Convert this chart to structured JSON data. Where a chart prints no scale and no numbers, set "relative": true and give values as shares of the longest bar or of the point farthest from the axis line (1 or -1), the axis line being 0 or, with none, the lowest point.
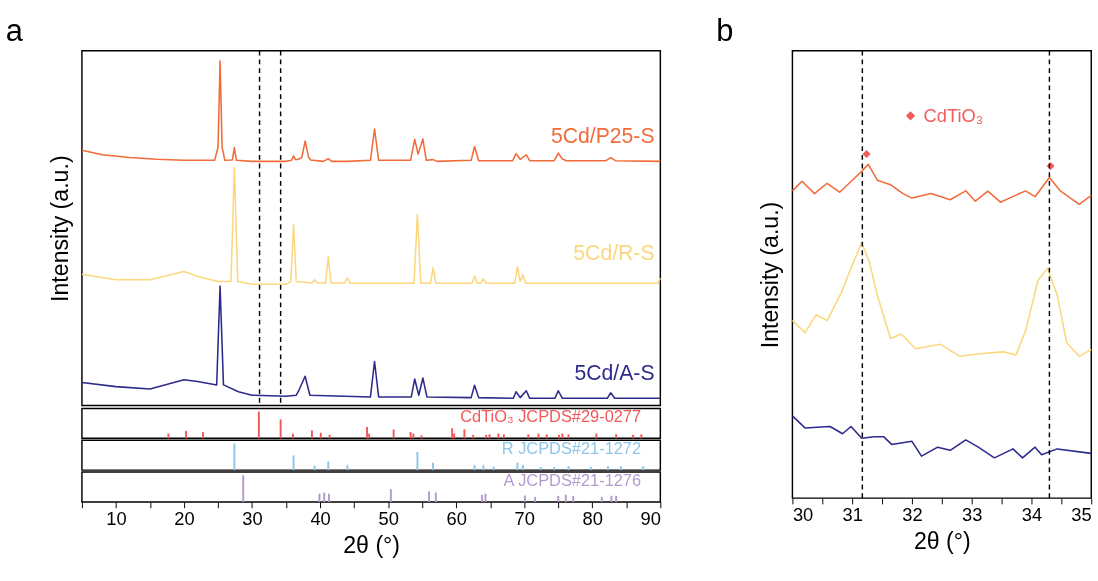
{
  "chart_data": [
    {
      "type": "line",
      "title": "a",
      "ylabel": "Intensity (a.u.)",
      "relative": true,
      "xlim": [
        5,
        90
      ],
      "tick_labels": false,
      "marker": "none",
      "line_style": "solid",
      "ref_lines": [
        {
          "axis": "x",
          "value": 31.1,
          "color": "#000000",
          "line_style": "dashed"
        },
        {
          "axis": "x",
          "value": 34.2,
          "color": "#000000",
          "line_style": "dashed"
        }
      ],
      "series": [
        {
          "name": "5Cd/P25-S",
          "color": "#f26b3a",
          "x": [
            5,
            8,
            12,
            16,
            20,
            24.5,
            25.0,
            25.3,
            25.6,
            26.0,
            27.1,
            27.4,
            27.7,
            30,
            35,
            35.8,
            36.1,
            36.4,
            36.9,
            37.3,
            37.8,
            38.3,
            38.6,
            40.5,
            41.2,
            41.7,
            44,
            47.4,
            48.0,
            48.6,
            53.3,
            53.9,
            54.4,
            55.1,
            55.6,
            56.6,
            57.2,
            62.2,
            62.7,
            63.3,
            68.3,
            68.8,
            69.4,
            70.3,
            70.8,
            74.4,
            75.0,
            75.6,
            76.2,
            82.0,
            82.7,
            83.4,
            90
          ],
          "values": [
            0.741,
            0.728,
            0.72,
            0.715,
            0.712,
            0.712,
            0.75,
            1.0,
            0.75,
            0.712,
            0.713,
            0.749,
            0.712,
            0.709,
            0.709,
            0.712,
            0.725,
            0.714,
            0.716,
            0.72,
            0.768,
            0.722,
            0.713,
            0.709,
            0.717,
            0.709,
            0.709,
            0.712,
            0.803,
            0.712,
            0.712,
            0.773,
            0.73,
            0.774,
            0.712,
            0.714,
            0.709,
            0.712,
            0.752,
            0.711,
            0.711,
            0.731,
            0.715,
            0.728,
            0.711,
            0.711,
            0.733,
            0.716,
            0.711,
            0.711,
            0.72,
            0.711,
            0.709
          ]
        },
        {
          "name": "5Cd/R-S",
          "color": "#fbd77d",
          "x": [
            5,
            10,
            15,
            20,
            22,
            25,
            26.9,
            27.4,
            27.9,
            30,
            35,
            35.7,
            36.1,
            36.5,
            38.8,
            39.2,
            39.6,
            40.8,
            41.2,
            41.6,
            43.6,
            44.0,
            44.4,
            53.8,
            54.3,
            54.8,
            56.2,
            56.6,
            57.0,
            62.3,
            62.7,
            63.1,
            63.6,
            64.0,
            64.4,
            68.6,
            69.0,
            69.4,
            69.8,
            70.2,
            80,
            89.6,
            90
          ],
          "values": [
            0.381,
            0.365,
            0.365,
            0.389,
            0.375,
            0.36,
            0.36,
            0.691,
            0.36,
            0.352,
            0.352,
            0.36,
            0.525,
            0.36,
            0.356,
            0.365,
            0.356,
            0.356,
            0.432,
            0.356,
            0.356,
            0.371,
            0.355,
            0.355,
            0.555,
            0.355,
            0.355,
            0.4,
            0.355,
            0.355,
            0.376,
            0.355,
            0.355,
            0.368,
            0.355,
            0.355,
            0.403,
            0.36,
            0.379,
            0.355,
            0.355,
            0.355,
            0.37
          ]
        },
        {
          "name": "5Cd/A-S",
          "color": "#2e2a8c",
          "x": [
            5,
            10,
            15,
            20,
            22,
            24.8,
            25.3,
            25.8,
            28,
            30,
            35,
            36.5,
            36.9,
            37.8,
            38.5,
            47.4,
            48.0,
            48.6,
            53.4,
            53.9,
            54.5,
            55.1,
            55.7,
            62.2,
            62.7,
            63.3,
            68.4,
            68.8,
            69.4,
            70.3,
            70.8,
            74.5,
            75.0,
            75.6,
            82.2,
            82.7,
            83.3,
            90
          ],
          "values": [
            0.067,
            0.055,
            0.048,
            0.075,
            0.07,
            0.06,
            0.347,
            0.06,
            0.04,
            0.03,
            0.027,
            0.03,
            0.045,
            0.085,
            0.03,
            0.025,
            0.128,
            0.025,
            0.025,
            0.077,
            0.03,
            0.08,
            0.025,
            0.023,
            0.059,
            0.023,
            0.021,
            0.04,
            0.023,
            0.043,
            0.021,
            0.021,
            0.043,
            0.021,
            0.021,
            0.037,
            0.021,
            0.021
          ]
        }
      ]
    },
    {
      "type": "bar",
      "relative": true,
      "xlim": [
        5,
        90
      ],
      "tick_labels": false,
      "series": [
        {
          "name": "CdTiO₃ JCPDS#29-0277",
          "color": "#f25a5a",
          "x": [
            17.7,
            20.3,
            22.8,
            31.0,
            34.2,
            36.0,
            38.8,
            40.1,
            41.4,
            46.9,
            47.2,
            50.8,
            53.3,
            53.7,
            54.9,
            59.4,
            59.7,
            61.2,
            62.5,
            64.4,
            64.9,
            66.2,
            67.0,
            70.6,
            72.1,
            73.3,
            75.1,
            75.6,
            76.5,
            80.6,
            83.5,
            86.0,
            87.2
          ],
          "values": [
            0.18,
            0.28,
            0.24,
            1.0,
            0.71,
            0.18,
            0.3,
            0.21,
            0.13,
            0.43,
            0.18,
            0.33,
            0.24,
            0.18,
            0.11,
            0.38,
            0.18,
            0.34,
            0.13,
            0.13,
            0.15,
            0.18,
            0.15,
            0.15,
            0.18,
            0.15,
            0.13,
            0.18,
            0.15,
            0.18,
            0.15,
            0.13,
            0.15
          ]
        }
      ]
    },
    {
      "type": "bar",
      "relative": true,
      "xlim": [
        5,
        90
      ],
      "tick_labels": false,
      "series": [
        {
          "name": "R JCPDS#21-1272",
          "color": "#8ec5e8",
          "x": [
            27.4,
            36.1,
            39.2,
            41.2,
            44.0,
            54.3,
            56.6,
            62.7,
            64.0,
            65.5,
            69.0,
            69.8,
            72.4,
            74.4,
            76.5,
            79.8,
            82.3,
            84.2,
            87.5
          ],
          "values": [
            1.0,
            0.55,
            0.17,
            0.32,
            0.19,
            0.68,
            0.28,
            0.19,
            0.19,
            0.13,
            0.28,
            0.19,
            0.12,
            0.12,
            0.15,
            0.12,
            0.15,
            0.15,
            0.15
          ]
        }
      ]
    },
    {
      "type": "bar",
      "relative": true,
      "xlabel": "2θ (°)",
      "xlim": [
        5,
        90
      ],
      "xticks": [
        {
          "value": 5,
          "label": null
        },
        10,
        {
          "value": 15,
          "label": null
        },
        20,
        {
          "value": 25,
          "label": null
        },
        30,
        {
          "value": 35,
          "label": null
        },
        40,
        {
          "value": 45,
          "label": null
        },
        50,
        {
          "value": 55,
          "label": null
        },
        60,
        {
          "value": 65,
          "label": null
        },
        70,
        {
          "value": 75,
          "label": null
        },
        80,
        {
          "value": 85,
          "label": null
        },
        90
      ],
      "tick_labels": "x",
      "series": [
        {
          "name": "A JCPDS#21-1276",
          "color": "#b59ad0",
          "x": [
            28.7,
            39.9,
            40.6,
            41.3,
            50.4,
            56.0,
            57.0,
            63.8,
            64.3,
            70.1,
            71.6,
            75.0,
            76.1,
            77.2,
            81.4,
            82.8,
            83.5
          ],
          "values": [
            1.0,
            0.31,
            0.35,
            0.31,
            0.48,
            0.39,
            0.35,
            0.27,
            0.31,
            0.24,
            0.19,
            0.23,
            0.27,
            0.23,
            0.19,
            0.23,
            0.23
          ]
        }
      ]
    },
    {
      "type": "line",
      "title": "b",
      "xlabel": "2θ (°)",
      "ylabel": "Intensity (a.u.)",
      "relative": true,
      "xlim": [
        30,
        35
      ],
      "xticks": [
        30,
        {
          "value": 30.5,
          "label": null
        },
        31,
        {
          "value": 31.5,
          "label": null
        },
        32,
        {
          "value": 32.5,
          "label": null
        },
        33,
        {
          "value": 33.5,
          "label": null
        },
        34,
        {
          "value": 34.5,
          "label": null
        },
        35
      ],
      "tick_labels": "x",
      "legend": "top",
      "marker": "none",
      "line_style": "solid",
      "ref_lines": [
        {
          "axis": "x",
          "value": 31.17,
          "color": "#000000",
          "line_style": "dashed"
        },
        {
          "axis": "x",
          "value": 34.3,
          "color": "#000000",
          "line_style": "dashed"
        }
      ],
      "series": [
        {
          "color": "#f26b3a",
          "x": [
            30.0,
            30.16,
            30.37,
            30.58,
            30.79,
            30.95,
            31.13,
            31.27,
            31.42,
            31.64,
            31.85,
            32.0,
            32.32,
            32.64,
            32.9,
            33.06,
            33.27,
            33.48,
            33.9,
            34.06,
            34.3,
            34.48,
            34.8,
            35.0
          ],
          "values": [
            0.893,
            0.921,
            0.885,
            0.915,
            0.889,
            0.915,
            0.945,
            0.97,
            0.924,
            0.911,
            0.885,
            0.872,
            0.885,
            0.867,
            0.893,
            0.863,
            0.892,
            0.86,
            0.893,
            0.876,
            0.932,
            0.893,
            0.854,
            0.88
          ]
        },
        {
          "color": "#fbd77d",
          "x": [
            30.0,
            30.21,
            30.4,
            30.58,
            30.82,
            31.0,
            31.16,
            31.29,
            31.42,
            31.64,
            31.82,
            32.06,
            32.48,
            32.8,
            33.22,
            33.53,
            33.74,
            33.9,
            34.11,
            34.27,
            34.43,
            34.59,
            34.8,
            35.0
          ],
          "values": [
            0.516,
            0.481,
            0.533,
            0.516,
            0.598,
            0.677,
            0.742,
            0.685,
            0.59,
            0.464,
            0.477,
            0.434,
            0.447,
            0.412,
            0.421,
            0.425,
            0.416,
            0.486,
            0.633,
            0.668,
            0.59,
            0.451,
            0.412,
            0.432
          ]
        },
        {
          "color": "#2e2a8c",
          "x": [
            30.0,
            30.21,
            30.63,
            30.84,
            30.98,
            31.16,
            31.37,
            31.53,
            31.66,
            32.0,
            32.16,
            32.43,
            32.64,
            32.9,
            33.11,
            33.38,
            33.69,
            33.85,
            34.06,
            34.17,
            34.43,
            35.0
          ],
          "values": [
            0.239,
            0.204,
            0.208,
            0.187,
            0.208,
            0.174,
            0.178,
            0.178,
            0.156,
            0.165,
            0.122,
            0.148,
            0.139,
            0.169,
            0.148,
            0.117,
            0.143,
            0.117,
            0.148,
            0.126,
            0.143,
            0.13
          ]
        },
        {
          "type": "scatter",
          "name": "CdTiO₃",
          "color": "#f25c5c",
          "marker": "diamond",
          "x": [
            31.24,
            34.32
          ],
          "values": [
            1.0,
            0.965
          ]
        }
      ]
    }
  ]
}
